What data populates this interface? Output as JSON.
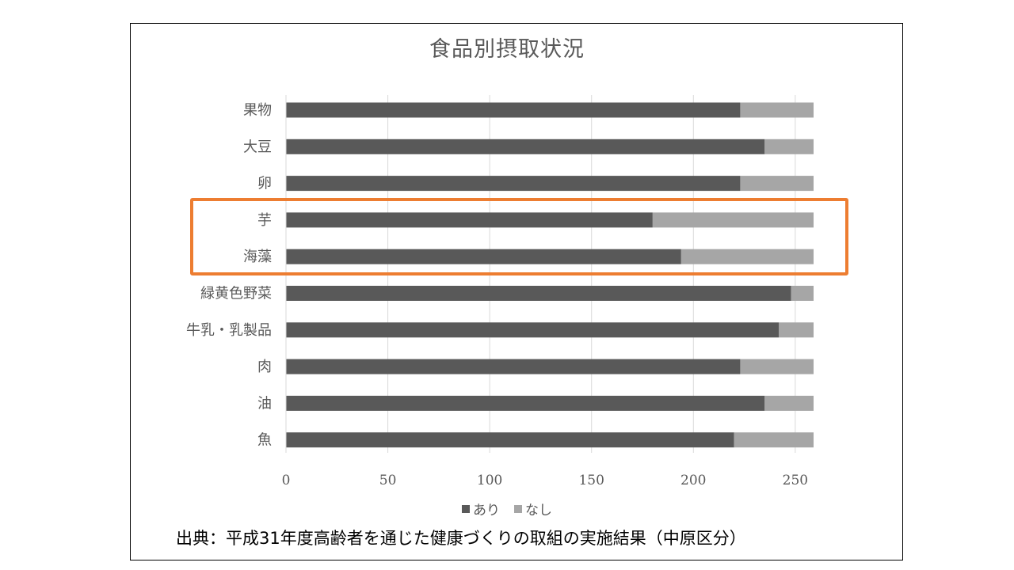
{
  "chart_data": {
    "type": "bar",
    "orientation": "horizontal",
    "stacked": true,
    "title": "食品別摂取状況",
    "categories": [
      "果物",
      "大豆",
      "卵",
      "芋",
      "海藻",
      "緑黄色野菜",
      "牛乳・乳製品",
      "肉",
      "油",
      "魚"
    ],
    "series": [
      {
        "name": "あり",
        "color": "#595959",
        "values": [
          223,
          235,
          223,
          180,
          194,
          248,
          242,
          223,
          235,
          220
        ]
      },
      {
        "name": "なし",
        "color": "#A6A6A6",
        "values": [
          36,
          24,
          36,
          79,
          65,
          11,
          17,
          36,
          24,
          39
        ]
      }
    ],
    "xlim": [
      0,
      259
    ],
    "xticks": [
      "0",
      "50",
      "100",
      "150",
      "200",
      "250"
    ],
    "grid": true,
    "legend": "bottom",
    "highlight": {
      "categories": [
        "芋",
        "海藻"
      ],
      "color": "#ED7D31"
    }
  },
  "source": "出典：平成31年度高齢者を通じた健康づくりの取組の実施結果（中原区分）"
}
